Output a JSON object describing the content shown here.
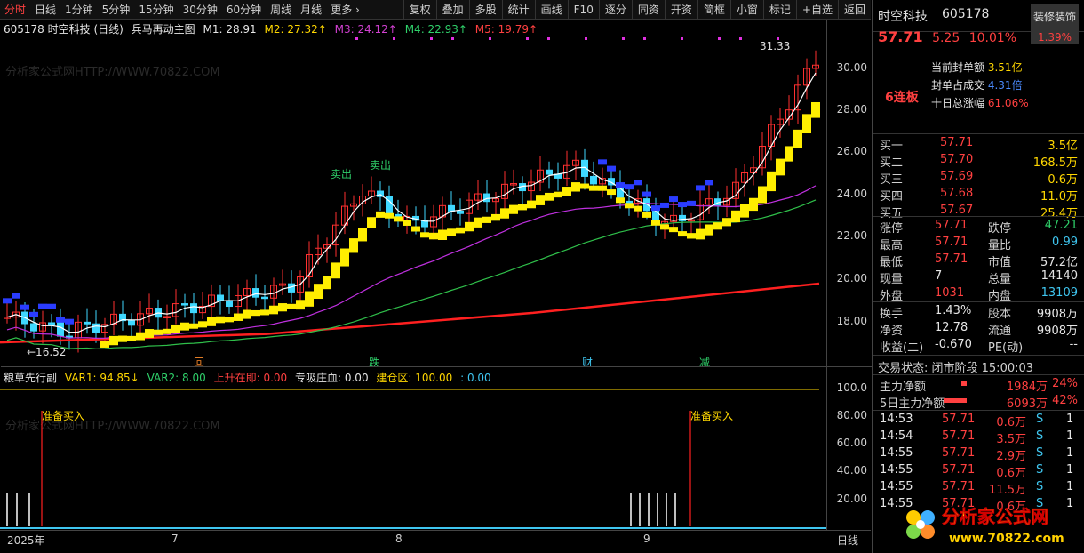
{
  "toolbar": {
    "periods": [
      "分时",
      "日线",
      "1分钟",
      "5分钟",
      "15分钟",
      "30分钟",
      "60分钟",
      "周线",
      "月线",
      "更多 ›"
    ],
    "active_index": 0,
    "tools": [
      "复权",
      "叠加",
      "多股",
      "统计",
      "画线",
      "F10",
      "逐分",
      "同资",
      "开资",
      "简框",
      "小窗",
      "标记",
      "+自选",
      "返回"
    ]
  },
  "main_legend": {
    "stock": "605178 时空科技 (日线)",
    "formula": "兵马再动主图",
    "m1": "M1: 28.91",
    "m2": "M2: 27.32↑",
    "m3": "M3: 24.12↑",
    "m4": "M4: 22.93↑",
    "m5": "M5: 19.79↑"
  },
  "annotations": {
    "sell1": "卖出",
    "sell2": "卖出",
    "high_label": "31.33",
    "low_label": "←16.52",
    "markers": [
      "回",
      "跌",
      "财",
      "减"
    ]
  },
  "sub_legend": {
    "name": "粮草先行副",
    "var1": "VAR1: 94.85↓",
    "var2": "VAR2: 8.00",
    "rise": "上升在即: 0.00",
    "absorb": "专吸庄血: 0.00",
    "build": "建仓区: 100.00",
    "build2": ": 0.00",
    "buy1": "准备买入",
    "buy2": "准备买入"
  },
  "watermark": "分析家公式网HTTP://WWW.70822.COM",
  "y_axis_main": [
    "30.00",
    "28.00",
    "26.00",
    "24.00",
    "22.00",
    "20.00",
    "18.00"
  ],
  "y_axis_sub": [
    "100.0",
    "80.00",
    "60.00",
    "40.00",
    "20.00"
  ],
  "x_axis": [
    "2025年",
    "7",
    "8",
    "9"
  ],
  "x_axis_right": "日线",
  "quote": {
    "name": "时空科技",
    "code": "605178",
    "sector_label": "装修装饰",
    "sector_pct": "1.39%",
    "price": "57.71",
    "change": "5.25",
    "change_pct": "10.01%",
    "streak": "6连板",
    "seal_amount_label": "当前封单额",
    "seal_amount": "3.51亿",
    "seal_ratio_label": "封单占成交",
    "seal_ratio": "4.31倍",
    "ten_day_label": "十日总涨幅",
    "ten_day": "61.06%",
    "orders": [
      {
        "label": "买一",
        "price": "57.71",
        "vol": "3.5亿"
      },
      {
        "label": "买二",
        "price": "57.70",
        "vol": "168.5万"
      },
      {
        "label": "买三",
        "price": "57.69",
        "vol": "0.6万"
      },
      {
        "label": "买四",
        "price": "57.68",
        "vol": "11.0万"
      },
      {
        "label": "买五",
        "price": "57.67",
        "vol": "25.4万"
      }
    ],
    "stats": [
      {
        "l1": "涨停",
        "v1": "57.71",
        "c1": "red",
        "l2": "跌停",
        "v2": "47.21",
        "c2": "green"
      },
      {
        "l1": "最高",
        "v1": "57.71",
        "c1": "red",
        "l2": "量比",
        "v2": "0.99",
        "c2": "cyan"
      },
      {
        "l1": "最低",
        "v1": "57.71",
        "c1": "red",
        "l2": "市值",
        "v2": "57.2亿",
        "c2": "white"
      },
      {
        "l1": "现量",
        "v1": "7",
        "c1": "white",
        "l2": "总量",
        "v2": "14140",
        "c2": "white"
      },
      {
        "l1": "外盘",
        "v1": "1031",
        "c1": "red",
        "l2": "内盘",
        "v2": "13109",
        "c2": "cyan"
      }
    ],
    "stats2": [
      {
        "l1": "换手",
        "v1": "1.43%",
        "l2": "股本",
        "v2": "9908万"
      },
      {
        "l1": "净资",
        "v1": "12.78",
        "l2": "流通",
        "v2": "9908万"
      },
      {
        "l1": "收益(二)",
        "v1": "-0.670",
        "l2": "PE(动)",
        "v2": "--"
      }
    ],
    "trade_state": "交易状态: 闭市阶段 15:00:03",
    "flow": [
      {
        "label": "主力净额",
        "amount": "1984万",
        "pct": "24%"
      },
      {
        "label": "5日主力净额",
        "amount": "6093万",
        "pct": "42%"
      }
    ],
    "ticks": [
      {
        "time": "14:53",
        "price": "57.71",
        "vol": "0.6万",
        "side": "S",
        "n": "1"
      },
      {
        "time": "14:54",
        "price": "57.71",
        "vol": "3.5万",
        "side": "S",
        "n": "1"
      },
      {
        "time": "14:55",
        "price": "57.71",
        "vol": "2.9万",
        "side": "S",
        "n": "1"
      },
      {
        "time": "14:55",
        "price": "57.71",
        "vol": "0.6万",
        "side": "S",
        "n": "1"
      },
      {
        "time": "14:55",
        "price": "57.71",
        "vol": "11.5万",
        "side": "S",
        "n": "1"
      },
      {
        "time": "14:55",
        "price": "57.71",
        "vol": "0.6万",
        "side": "S",
        "n": "1"
      }
    ]
  },
  "logo": {
    "text": "分析家公式网",
    "url": "www.70822.com"
  }
}
